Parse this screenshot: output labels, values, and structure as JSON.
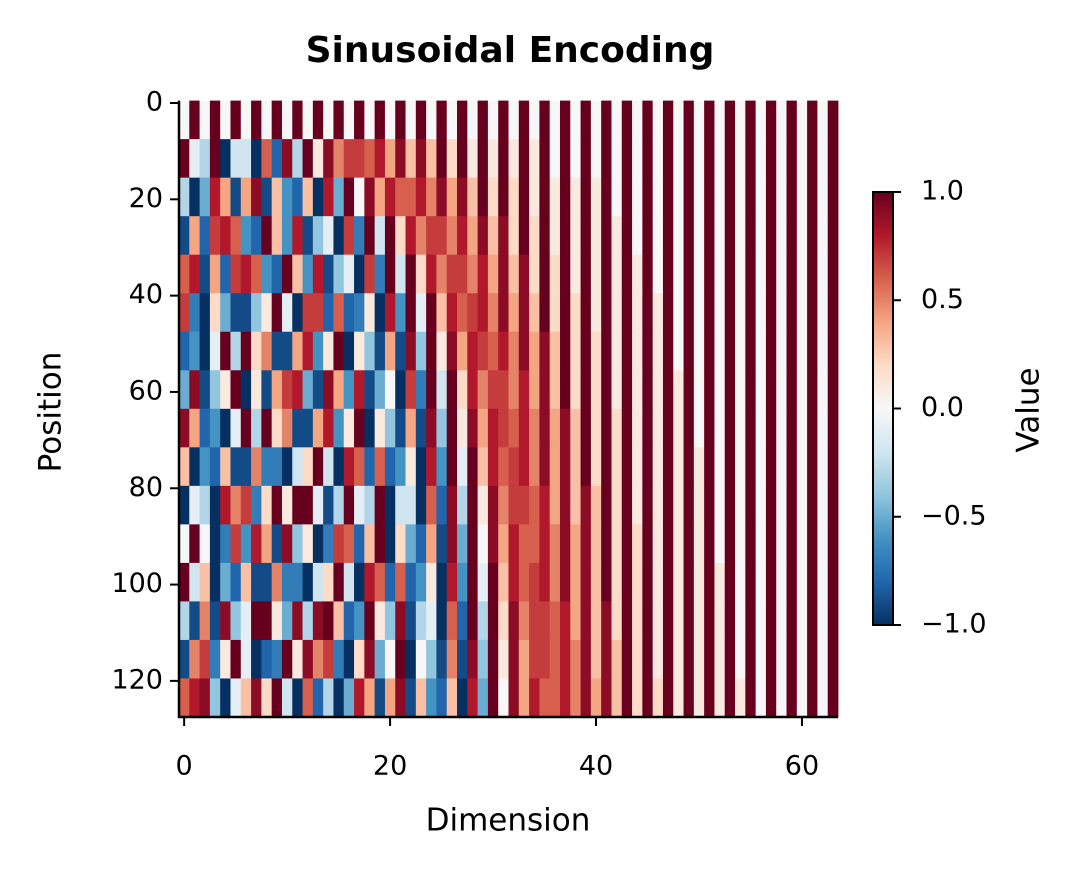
{
  "chart_data": {
    "type": "heatmap",
    "title": "Sinusoidal Encoding",
    "x_label": "Dimension",
    "y_label": "Position",
    "colorbar_label": "Value",
    "x": [
      0,
      1,
      2,
      3,
      4,
      5,
      6,
      7,
      8,
      9,
      10,
      11,
      12,
      13,
      14,
      15,
      16,
      17,
      18,
      19,
      20,
      21,
      22,
      23,
      24,
      25,
      26,
      27,
      28,
      29,
      30,
      31,
      32,
      33,
      34,
      35,
      36,
      37,
      38,
      39,
      40,
      41,
      42,
      43,
      44,
      45,
      46,
      47,
      48,
      49,
      50,
      51,
      52,
      53,
      54,
      55,
      56,
      57,
      58,
      59,
      60,
      61,
      62,
      63
    ],
    "y": [
      0,
      8,
      16,
      24,
      32,
      40,
      48,
      56,
      64,
      72,
      80,
      88,
      96,
      104,
      112,
      120
    ],
    "values": [
      [
        0,
        1,
        0,
        1,
        0,
        1,
        0,
        1,
        0,
        1,
        0,
        1,
        0,
        1,
        0,
        1,
        0,
        1,
        0,
        1,
        0,
        1,
        0,
        1,
        0,
        1,
        0,
        1,
        0,
        1,
        0,
        1,
        0,
        1,
        0,
        1,
        0,
        1,
        0,
        1,
        0,
        1,
        0,
        1,
        0,
        1,
        0,
        1,
        0,
        1,
        0,
        1,
        0,
        1,
        0,
        1,
        0,
        1,
        0,
        1,
        0,
        1,
        0,
        1
      ],
      [
        1,
        -0.1,
        -0.3,
        1,
        -1,
        -0.2,
        -0.2,
        -1,
        0.6,
        -0.8,
        0.9,
        -0.3,
        1,
        0.1,
        0.9,
        0.5,
        0.7,
        0.7,
        0.6,
        0.8,
        0.4,
        0.9,
        0.3,
        0.9,
        0.3,
        1,
        0.2,
        1,
        0.1,
        1,
        0.1,
        1,
        0.1,
        1,
        0.1,
        1,
        0,
        1,
        0,
        1,
        0,
        1,
        0,
        1,
        0,
        1,
        0,
        1,
        0,
        1,
        0,
        1,
        0,
        1,
        0,
        1,
        0,
        1,
        0,
        1,
        0,
        1,
        0,
        1
      ],
      [
        -0.3,
        -1,
        -0.5,
        0.8,
        0.4,
        -0.9,
        0.4,
        0.9,
        -0.9,
        0.3,
        -0.6,
        -0.8,
        0.3,
        -1,
        0.8,
        -0.5,
        1,
        0,
        0.9,
        0.4,
        0.8,
        0.6,
        0.6,
        0.8,
        0.5,
        0.9,
        0.4,
        0.9,
        0.3,
        1,
        0.2,
        1,
        0.2,
        1,
        0.1,
        1,
        0.1,
        1,
        0.1,
        1,
        0.1,
        1,
        0,
        1,
        0,
        1,
        0,
        1,
        0,
        1,
        0,
        1,
        0,
        1,
        0,
        1,
        0,
        1,
        0,
        1,
        0,
        1,
        0,
        1
      ],
      [
        -0.9,
        0.4,
        -0.8,
        0.7,
        0.8,
        0.6,
        -0.6,
        -0.8,
        1,
        0.3,
        -0.6,
        0.8,
        -0.9,
        -0.4,
        -0.1,
        -1,
        0.7,
        -0.7,
        1,
        -0.2,
        1,
        0.2,
        0.8,
        0.5,
        0.7,
        0.7,
        0.5,
        0.8,
        0.4,
        0.9,
        0.3,
        0.9,
        0.2,
        1,
        0.2,
        1,
        0.1,
        1,
        0.1,
        1,
        0.1,
        1,
        0.1,
        1,
        0,
        1,
        0,
        1,
        0,
        1,
        0,
        1,
        0,
        1,
        0,
        1,
        0,
        1,
        0,
        1,
        0,
        1,
        0,
        1
      ],
      [
        0.6,
        0.8,
        -0.9,
        0.4,
        -0.8,
        0.7,
        0.8,
        0.6,
        -0.6,
        -0.8,
        1,
        0.3,
        -0.6,
        0.8,
        -0.9,
        -0.4,
        -0.1,
        -1,
        0.7,
        -0.7,
        1,
        -0.2,
        1,
        0.2,
        0.8,
        0.5,
        0.7,
        0.7,
        0.5,
        0.8,
        0.4,
        0.9,
        0.3,
        0.9,
        0.2,
        1,
        0.2,
        1,
        0.1,
        1,
        0.1,
        1,
        0.1,
        1,
        0.1,
        1,
        0,
        1,
        0,
        1,
        0,
        1,
        0,
        1,
        0,
        1,
        0,
        1,
        0,
        1,
        0,
        1,
        0,
        1
      ],
      [
        0.7,
        -0.7,
        -1,
        0.2,
        -0.5,
        -0.9,
        -0.9,
        -0.4,
        0.1,
        1,
        -0.1,
        -1,
        0.7,
        0.7,
        -0.8,
        0.6,
        -0.8,
        -0.7,
        0.1,
        -1,
        0.8,
        -0.6,
        1,
        -0.1,
        1,
        0.3,
        0.8,
        0.6,
        0.7,
        0.8,
        0.5,
        0.9,
        0.4,
        0.9,
        0.3,
        1,
        0.2,
        1,
        0.2,
        1,
        0.1,
        1,
        0.1,
        1,
        0.1,
        1,
        0.1,
        1,
        0,
        1,
        0,
        1,
        0,
        1,
        0,
        1,
        0,
        1,
        0,
        1,
        0,
        1,
        0,
        1
      ],
      [
        -0.8,
        -0.6,
        -1,
        -0.1,
        1,
        -0.3,
        1,
        0.2,
        0.5,
        -0.9,
        -0.9,
        0.4,
        0.8,
        -0.6,
        0.1,
        1,
        -1,
        0.1,
        -0.4,
        -0.9,
        0.4,
        -0.9,
        0.9,
        -0.4,
        1,
        0.1,
        0.9,
        0.4,
        0.8,
        0.7,
        0.6,
        0.8,
        0.5,
        0.9,
        0.4,
        0.9,
        0.3,
        1,
        0.2,
        1,
        0.2,
        1,
        0.1,
        1,
        0.1,
        1,
        0.1,
        1,
        0,
        1,
        0,
        1,
        0,
        1,
        0,
        1,
        0,
        1,
        0,
        1,
        0,
        1,
        0,
        1
      ],
      [
        -0.5,
        0.9,
        -0.9,
        -0.4,
        0.1,
        1,
        -1,
        0.1,
        -0.9,
        0.4,
        0.7,
        0.8,
        -0.5,
        -0.9,
        0.9,
        0.4,
        -0.6,
        0.8,
        -0.9,
        -0.5,
        0,
        -1,
        0.7,
        -0.7,
        1,
        -0.2,
        1,
        0.2,
        0.8,
        0.5,
        0.7,
        0.7,
        0.5,
        0.8,
        0.4,
        0.9,
        0.3,
        1,
        0.2,
        1,
        0.2,
        1,
        0.1,
        1,
        0.1,
        1,
        0.1,
        1,
        0.1,
        1,
        0,
        1,
        0,
        1,
        0,
        1,
        0,
        1,
        0,
        1,
        0,
        1,
        0,
        1
      ],
      [
        0.9,
        0.4,
        -0.8,
        -0.6,
        -1,
        -0.1,
        1,
        -0.3,
        1,
        0.2,
        0.5,
        -0.9,
        -0.9,
        0.4,
        0.8,
        -0.6,
        0.1,
        1,
        -1,
        0.1,
        -0.4,
        -0.9,
        0.4,
        -0.9,
        0.9,
        -0.4,
        1,
        0.1,
        0.9,
        0.4,
        0.8,
        0.7,
        0.6,
        0.8,
        0.5,
        0.9,
        0.4,
        0.9,
        0.3,
        1,
        0.2,
        1,
        0.2,
        1,
        0.1,
        1,
        0.1,
        1,
        0.1,
        1,
        0,
        1,
        0,
        1,
        0,
        1,
        0,
        1,
        0,
        1,
        0,
        1,
        0,
        1
      ],
      [
        0.3,
        -1,
        -0.6,
        -0.8,
        0.3,
        -0.9,
        -0.9,
        0.5,
        -0.7,
        -0.7,
        -1,
        -0.2,
        0.2,
        1,
        -0.2,
        -1,
        0.8,
        0.6,
        -0.8,
        0.6,
        -0.8,
        -0.6,
        0.1,
        -1,
        0.8,
        -0.6,
        1,
        -0.1,
        1,
        0.3,
        0.8,
        0.6,
        0.7,
        0.8,
        0.5,
        0.9,
        0.4,
        0.9,
        0.3,
        1,
        0.2,
        1,
        0.2,
        1,
        0.1,
        1,
        0.1,
        1,
        0.1,
        1,
        0.1,
        1,
        0,
        1,
        0,
        1,
        0,
        1,
        0,
        1,
        0,
        1,
        0,
        1
      ],
      [
        -1,
        -0.1,
        -0.3,
        -1,
        0.8,
        0.5,
        0.7,
        -0.7,
        0.2,
        1,
        0.1,
        1,
        1,
        -0.1,
        -0.9,
        -0.3,
        1,
        -0.1,
        -0.3,
        1,
        -1,
        -0.2,
        -0.2,
        -1,
        0.6,
        -0.8,
        0.9,
        -0.3,
        1,
        0.1,
        0.9,
        0.5,
        0.7,
        0.7,
        0.6,
        0.8,
        0.4,
        0.9,
        0.3,
        0.9,
        0.3,
        1,
        0.2,
        1,
        0.1,
        1,
        0.1,
        1,
        0.1,
        1,
        0.1,
        1,
        0,
        1,
        0,
        1,
        0,
        1,
        0,
        1,
        0,
        1,
        0,
        1
      ],
      [
        0,
        1,
        0,
        -1,
        -0.7,
        0.7,
        -0.6,
        0.8,
        0.4,
        -0.9,
        0.9,
        -0.4,
        0.1,
        -1,
        -0.7,
        0.7,
        0.6,
        -0.8,
        0.3,
        1,
        -1,
        0.2,
        -0.5,
        -0.8,
        0.4,
        -0.9,
        0.9,
        -0.5,
        1,
        0,
        0.9,
        0.4,
        0.8,
        0.6,
        0.6,
        0.8,
        0.5,
        0.9,
        0.4,
        0.9,
        0.3,
        1,
        0.2,
        1,
        0.2,
        1,
        0.1,
        1,
        0.1,
        1,
        0.1,
        1,
        0,
        1,
        0,
        1,
        0,
        1,
        0,
        1,
        0,
        1,
        0,
        1
      ],
      [
        1,
        -0.2,
        0.3,
        -1,
        -0.5,
        -0.8,
        0.3,
        -0.9,
        -0.9,
        0.5,
        -0.7,
        -0.7,
        -1,
        -0.2,
        0.2,
        1,
        -0.2,
        -1,
        0.8,
        0.6,
        -0.8,
        0.6,
        -0.8,
        -0.6,
        0.1,
        -1,
        0.8,
        -0.6,
        1,
        -0.1,
        1,
        0.3,
        0.8,
        0.6,
        0.7,
        0.8,
        0.5,
        0.9,
        0.4,
        0.9,
        0.3,
        1,
        0.2,
        1,
        0.2,
        1,
        0.1,
        1,
        0.1,
        1,
        0.1,
        1,
        0.1,
        1,
        0,
        1,
        0,
        1,
        0,
        1,
        0,
        1,
        0,
        1
      ],
      [
        -0.3,
        -0.9,
        0.5,
        -0.9,
        0.9,
        -0.4,
        -0.1,
        1,
        1,
        0.1,
        -0.5,
        0.9,
        -0.3,
        0.9,
        1,
        0.3,
        -0.8,
        -0.6,
        1,
        0.1,
        -0.4,
        0.9,
        -0.9,
        -0.3,
        -0.1,
        -1,
        0.6,
        -0.8,
        1,
        -0.3,
        1,
        0.2,
        0.9,
        0.5,
        0.7,
        0.7,
        0.6,
        0.8,
        0.4,
        0.9,
        0.3,
        0.9,
        0.2,
        1,
        0.2,
        1,
        0.1,
        1,
        0.1,
        1,
        0.1,
        1,
        0.1,
        1,
        0,
        1,
        0,
        1,
        0,
        1,
        0,
        1,
        0,
        1
      ],
      [
        -0.9,
        0.5,
        0.7,
        -0.7,
        0.1,
        1,
        -0.1,
        -1,
        -0.8,
        -0.7,
        1,
        0.1,
        0.9,
        0.5,
        0.7,
        -0.7,
        -1,
        0.2,
        0.9,
        -0.5,
        0,
        1,
        -1,
        0,
        -0.4,
        -0.9,
        0.5,
        -0.9,
        0.9,
        -0.4,
        1,
        0.1,
        0.9,
        0.4,
        0.7,
        0.7,
        0.6,
        0.8,
        0.5,
        0.9,
        0.3,
        0.9,
        0.3,
        1,
        0.2,
        1,
        0.1,
        1,
        0.1,
        1,
        0.1,
        1,
        0.1,
        1,
        0,
        1,
        0,
        1,
        0,
        1,
        0,
        1,
        0,
        1
      ],
      [
        0.6,
        0.8,
        0.9,
        -0.4,
        -1,
        -0.1,
        0.3,
        0.9,
        0.2,
        1,
        -0.2,
        -1,
        0.6,
        -0.8,
        -0.3,
        -1,
        -0.5,
        0.8,
        0.4,
        -0.9,
        0.4,
        0.9,
        -0.9,
        0.3,
        -0.6,
        -0.8,
        0.3,
        -1,
        0.8,
        -0.5,
        1,
        0,
        0.9,
        0.4,
        0.8,
        0.6,
        0.6,
        0.8,
        0.5,
        0.9,
        0.4,
        0.9,
        0.3,
        1,
        0.2,
        1,
        0.2,
        1,
        0.1,
        1,
        0.1,
        1,
        0.1,
        1,
        0.1,
        1,
        0,
        1,
        0,
        1,
        0,
        1,
        0,
        1
      ]
    ],
    "xlim": [
      -0.5,
      63.5
    ],
    "ylim": [
      127.5,
      -0.5
    ],
    "xticks": [
      0,
      20,
      40,
      60
    ],
    "yticks": [
      0,
      20,
      40,
      60,
      80,
      100,
      120
    ],
    "clim": [
      -1,
      1
    ],
    "cticks": [
      {
        "value": -1,
        "label": "−1.0"
      },
      {
        "value": -0.5,
        "label": "−0.5"
      },
      {
        "value": 0,
        "label": "0.0"
      },
      {
        "value": 0.5,
        "label": "0.5"
      },
      {
        "value": 1,
        "label": "1.0"
      }
    ],
    "colorscale": [
      "#053061",
      "#2166ac",
      "#4393c3",
      "#92c5de",
      "#d1e5f0",
      "#f7f7f7",
      "#fddbc7",
      "#f4a582",
      "#d6604d",
      "#b2182b",
      "#67001f"
    ]
  }
}
